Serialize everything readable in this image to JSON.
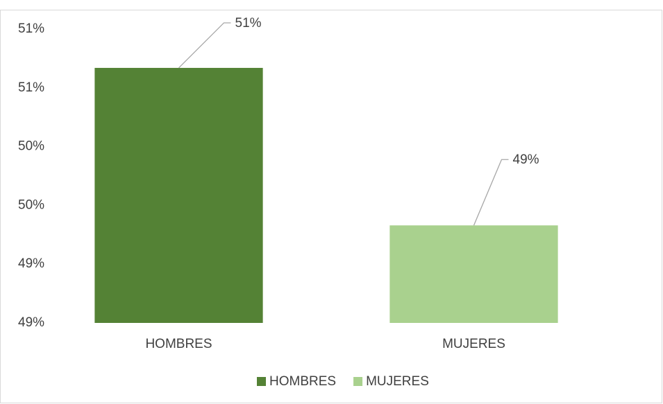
{
  "chart_data": {
    "type": "bar",
    "categories": [
      "HOMBRES",
      "MUJERES"
    ],
    "series": [
      {
        "name": "HOMBRES",
        "color": "#548235"
      },
      {
        "name": "MUJERES",
        "color": "#a9d18e"
      }
    ],
    "values": [
      50.67,
      49.33
    ],
    "value_labels": [
      "51%",
      "49%"
    ],
    "ylim": [
      48.5,
      51.0
    ],
    "yticks": [
      {
        "value": 48.5,
        "label": "49%"
      },
      {
        "value": 49.0,
        "label": "49%"
      },
      {
        "value": 49.5,
        "label": "50%"
      },
      {
        "value": 50.0,
        "label": "50%"
      },
      {
        "value": 50.5,
        "label": "51%"
      },
      {
        "value": 51.0,
        "label": "51%"
      }
    ],
    "grid": false,
    "legend": "bottom"
  }
}
